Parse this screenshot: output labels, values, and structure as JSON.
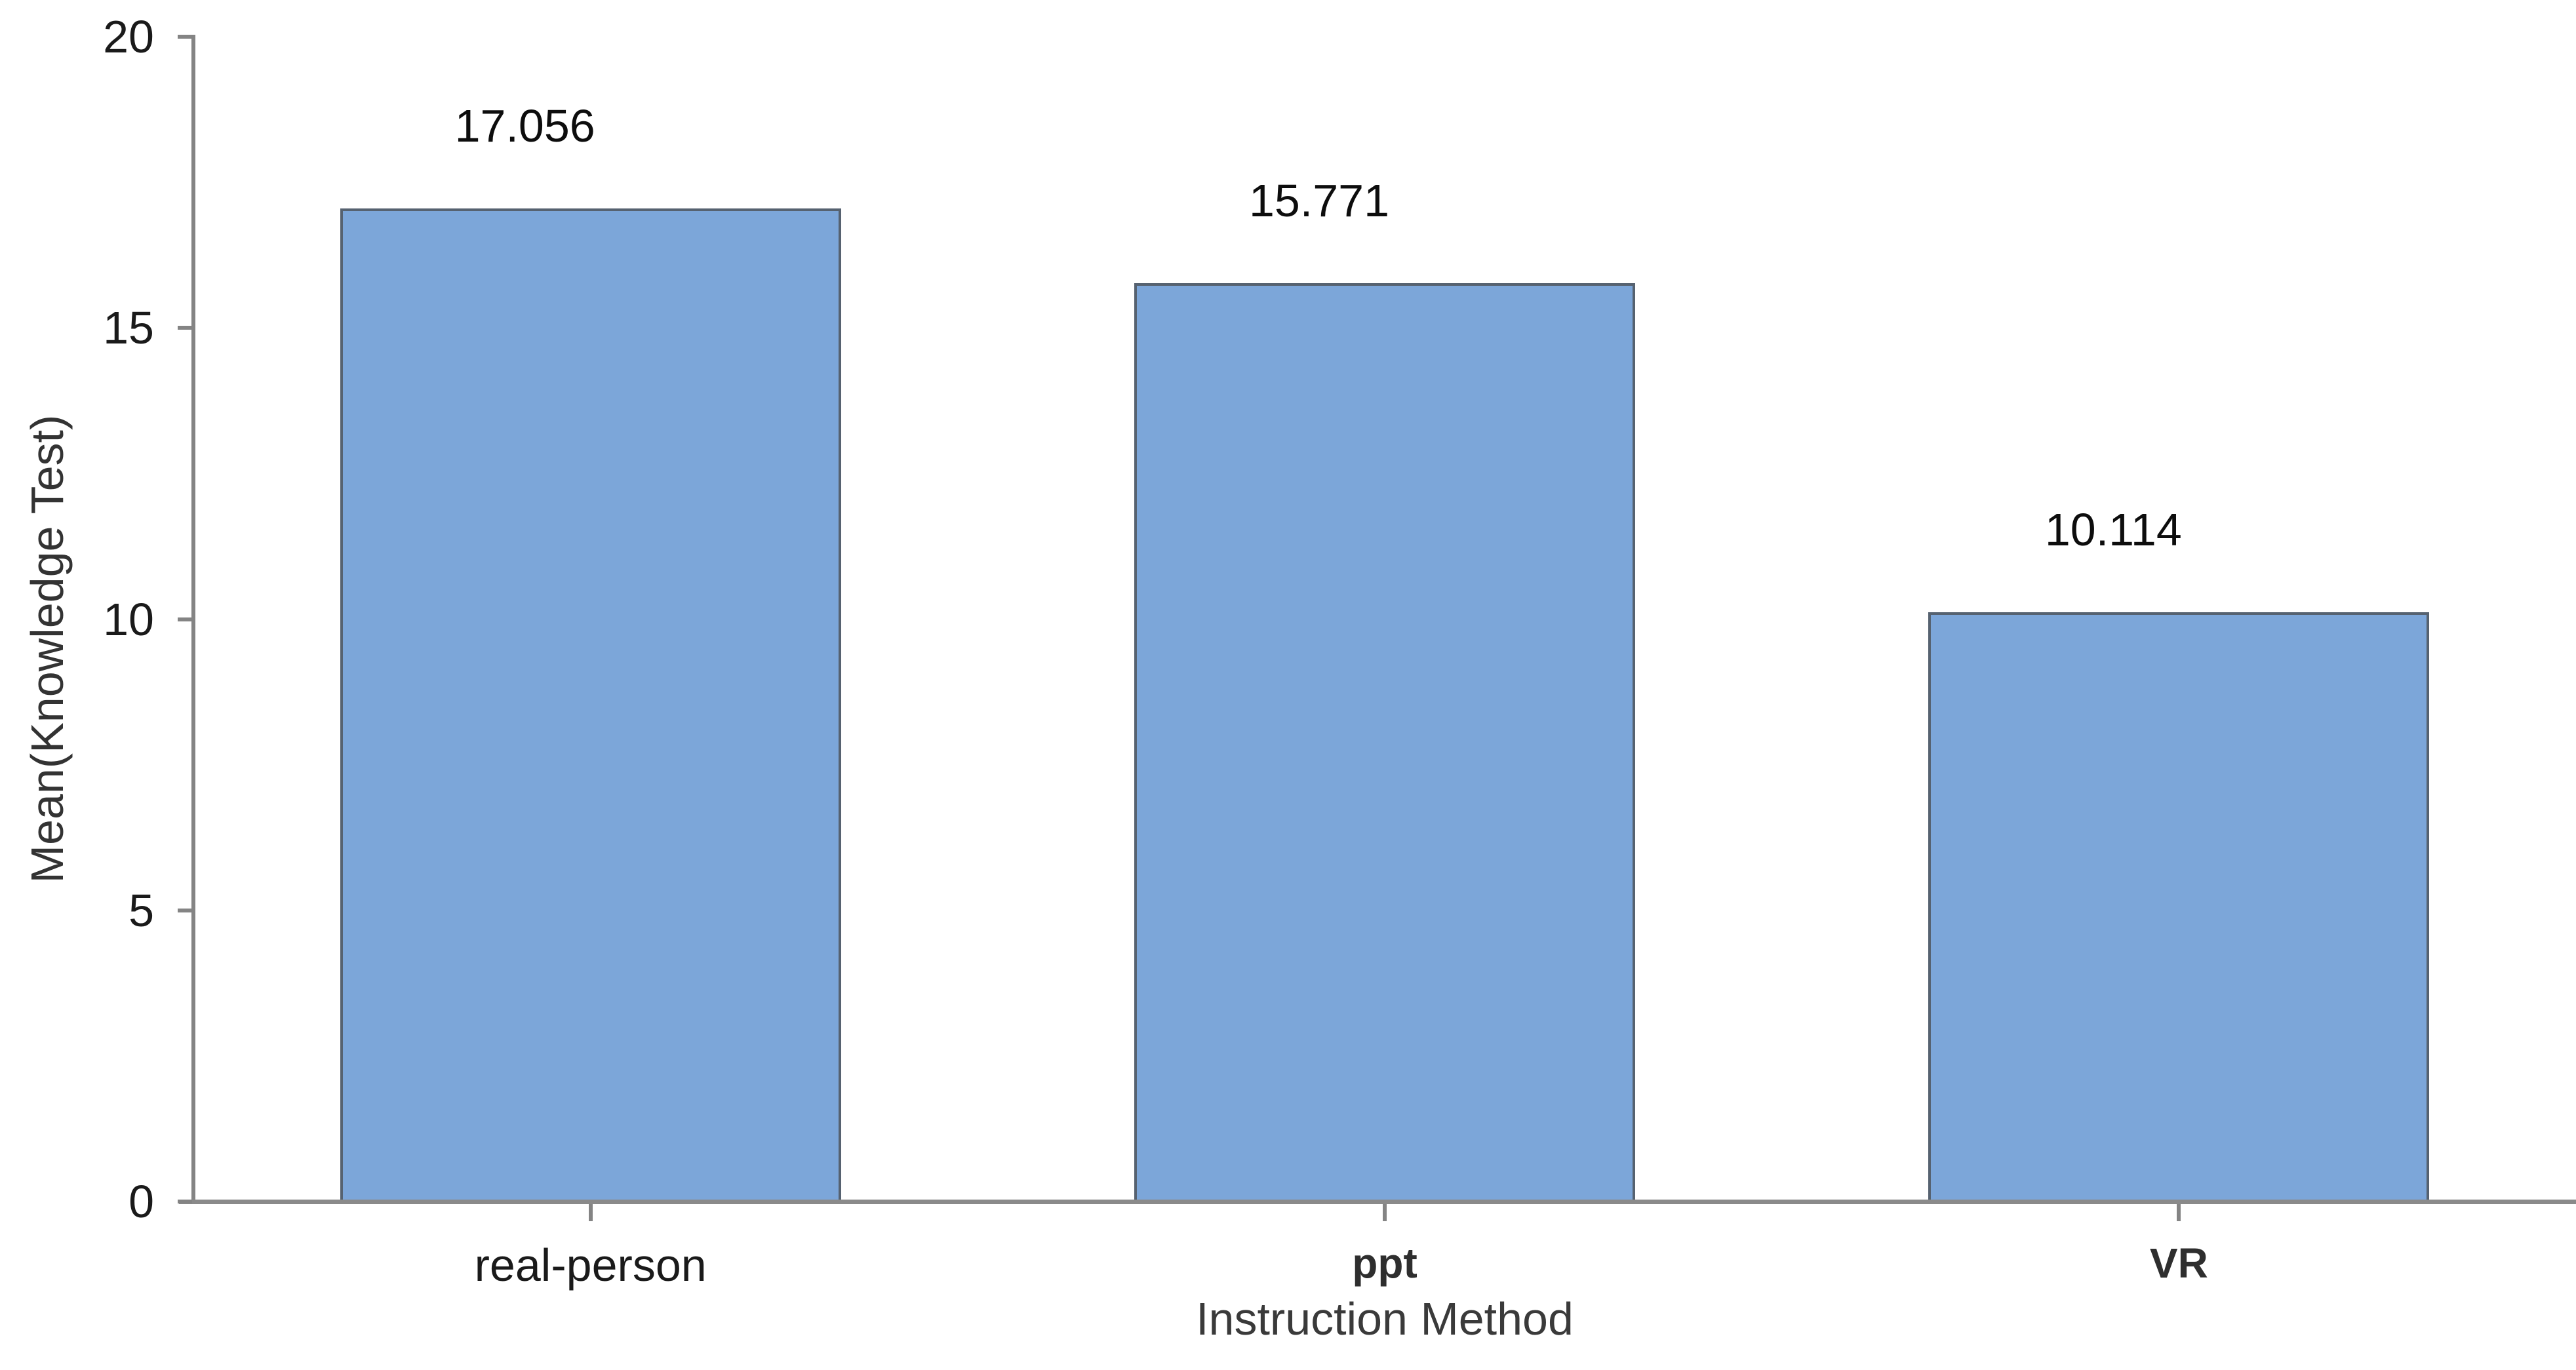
{
  "chart_data": {
    "type": "bar",
    "title": "",
    "categories": [
      "real-person",
      "ppt",
      "VR"
    ],
    "values": [
      17.056,
      15.771,
      10.114
    ],
    "value_labels": [
      "17.056",
      "15.771",
      "10.114"
    ],
    "xlabel": "Instruction Method",
    "ylabel": "Mean(Knowledge Test)",
    "ylim": [
      0,
      20
    ],
    "yticks": [
      0,
      5,
      10,
      15,
      20
    ],
    "grid": false,
    "legend": "none",
    "bar_fill_color": "#7ca6d9",
    "bar_border_color": "#566270",
    "axis_line_color": "#848484",
    "tick_label_color": "#1a1a1a",
    "value_label_color": "#0d0d0d",
    "axis_title_color": "#3a3a3a"
  }
}
